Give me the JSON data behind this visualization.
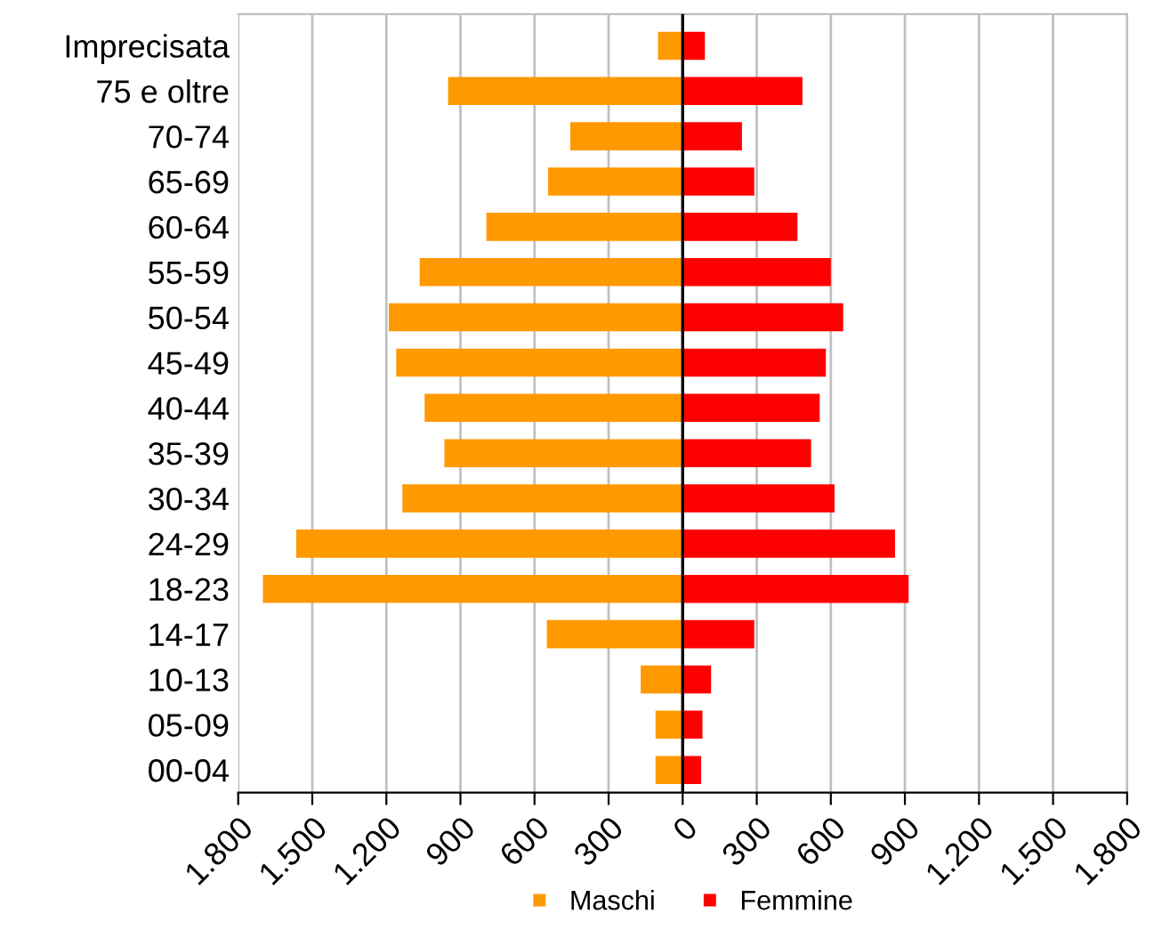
{
  "chart_data": {
    "type": "bar",
    "orientation": "horizontal",
    "stacked": true,
    "categories": [
      "Imprecisata",
      "75 e oltre",
      "70-74",
      "65-69",
      "60-64",
      "55-59",
      "50-54",
      "45-49",
      "40-44",
      "35-39",
      "30-34",
      "24-29",
      "18-23",
      "14-17",
      "10-13",
      "05-09",
      "00-04"
    ],
    "series": [
      {
        "name": "Maschi",
        "color": "#ff9900",
        "values": [
          -100,
          -950,
          -455,
          -545,
          -795,
          -1065,
          -1190,
          -1160,
          -1045,
          -965,
          -1135,
          -1565,
          -1700,
          -550,
          -170,
          -110,
          -110
        ]
      },
      {
        "name": "Femmine",
        "color": "#ff0000",
        "values": [
          90,
          485,
          240,
          290,
          465,
          600,
          650,
          580,
          555,
          520,
          615,
          860,
          915,
          290,
          115,
          80,
          75
        ]
      }
    ],
    "xlim": [
      -1800,
      1800
    ],
    "xticks": [
      {
        "value": -1800,
        "label": "1.800"
      },
      {
        "value": -1500,
        "label": "1.500"
      },
      {
        "value": -1200,
        "label": "1.200"
      },
      {
        "value": -900,
        "label": "900"
      },
      {
        "value": -600,
        "label": "600"
      },
      {
        "value": -300,
        "label": "300"
      },
      0,
      300,
      600,
      900,
      {
        "value": 1200,
        "label": "1.200"
      },
      {
        "value": 1500,
        "label": "1.500"
      },
      {
        "value": 1800,
        "label": "1.800"
      }
    ],
    "grid": "x",
    "legend": "bottom"
  }
}
